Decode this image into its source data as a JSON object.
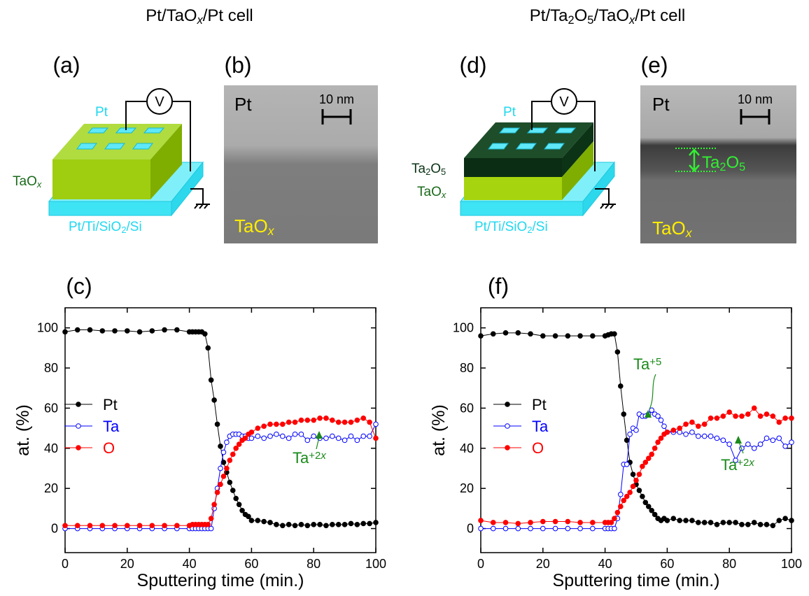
{
  "titles": [
    [
      "Pt/TaO",
      {
        "sub": "x",
        "italic": true
      },
      "/Pt cell"
    ],
    [
      "Pt/Ta",
      {
        "sub": "2"
      },
      "O",
      {
        "sub": "5"
      },
      "/TaO",
      {
        "sub": "x",
        "italic": true
      },
      "/Pt cell"
    ]
  ],
  "panel_labels": [
    "(a)",
    "(b)",
    "(c)",
    "(d)",
    "(e)",
    "(f)"
  ],
  "diagram_a": {
    "top": "Pt",
    "side": [
      "TaO",
      {
        "sub": "x",
        "italic": true
      }
    ],
    "substrate": [
      "Pt/Ti/SiO",
      {
        "sub": "2"
      },
      "/Si"
    ],
    "meter": "V"
  },
  "image_b": {
    "top": "Pt",
    "scale": "10 nm",
    "bottom": [
      "TaO",
      {
        "sub": "x",
        "italic": true
      }
    ]
  },
  "diagram_d": {
    "top": "Pt",
    "layer1": [
      "Ta",
      {
        "sub": "2"
      },
      "O",
      {
        "sub": "5"
      }
    ],
    "layer2": [
      "TaO",
      {
        "sub": "x",
        "italic": true
      }
    ],
    "substrate": [
      "Pt/Ti/SiO",
      {
        "sub": "2"
      },
      "/Si"
    ],
    "meter": "V"
  },
  "image_e": {
    "top": "Pt",
    "scale": "10 nm",
    "band": [
      "Ta",
      {
        "sub": "2"
      },
      "O",
      {
        "sub": "5"
      }
    ],
    "bottom": [
      "TaO",
      {
        "sub": "x",
        "italic": true
      }
    ]
  },
  "chart_data": [
    {
      "type": "line",
      "xlabel": "Sputtering time (min.)",
      "ylabel": "at. (%)",
      "xlim": [
        0,
        100
      ],
      "ylim": [
        -12,
        110
      ],
      "xticks": [
        0,
        20,
        40,
        60,
        80,
        100
      ],
      "yticks": [
        0,
        20,
        40,
        60,
        80,
        100
      ],
      "x": [
        0,
        4,
        8,
        12,
        16,
        20,
        24,
        28,
        32,
        36,
        40,
        41,
        42,
        43,
        44,
        45,
        46,
        47,
        48,
        49,
        50,
        51,
        52,
        53,
        54,
        55,
        56,
        57,
        58,
        59,
        60,
        62,
        64,
        66,
        68,
        70,
        72,
        74,
        76,
        78,
        80,
        82,
        84,
        86,
        88,
        90,
        92,
        94,
        96,
        98,
        100
      ],
      "series": [
        {
          "name": "Pt",
          "color": "#000000",
          "marker": "filled",
          "values": [
            98,
            99,
            99,
            98.5,
            98.5,
            98.5,
            98,
            98.5,
            99,
            99,
            98,
            98,
            98,
            98,
            98,
            97,
            90,
            74,
            64,
            52,
            41,
            33,
            28,
            23,
            19,
            15,
            12,
            9,
            7,
            6,
            4,
            4,
            3.5,
            3,
            2,
            1.5,
            2,
            1.5,
            2,
            1.5,
            2,
            2,
            1.5,
            2,
            2,
            2,
            2.5,
            2,
            2.5,
            2.5,
            3
          ]
        },
        {
          "name": "Ta",
          "color": "#0000ff",
          "marker": "open",
          "values": [
            0,
            0,
            0,
            0,
            0,
            0,
            0,
            0,
            0,
            0,
            0,
            0,
            0,
            0,
            0,
            0,
            0,
            0,
            10,
            20,
            30,
            38,
            43,
            46,
            47,
            47,
            47,
            46,
            46,
            45,
            45,
            46,
            45,
            46,
            47,
            46,
            45,
            47,
            47,
            44,
            46,
            45,
            45,
            46,
            45,
            44,
            46,
            44,
            46,
            46,
            52
          ]
        },
        {
          "name": "O",
          "color": "#ff0000",
          "marker": "filled",
          "values": [
            1.5,
            1.5,
            1.5,
            1.5,
            1.5,
            1.5,
            1.5,
            1.5,
            1.5,
            1.5,
            1.5,
            2,
            2,
            2,
            2,
            2,
            2,
            5,
            12,
            18,
            22,
            26,
            30,
            34,
            37,
            40,
            42,
            44,
            45,
            47,
            48,
            50,
            51,
            52,
            52,
            52,
            53,
            53,
            54,
            54,
            54,
            55,
            55,
            54,
            53,
            53,
            53,
            54,
            55,
            53,
            45
          ]
        }
      ],
      "annotations": [
        {
          "text": [
            "Ta",
            {
              "sup": "+2"
            },
            {
              "sup": "x",
              "italic": true
            }
          ],
          "color": "#1a8a1a"
        }
      ]
    },
    {
      "type": "line",
      "xlabel": "Sputtering time (min.)",
      "ylabel": "at. (%)",
      "xlim": [
        0,
        100
      ],
      "ylim": [
        -12,
        110
      ],
      "xticks": [
        0,
        20,
        40,
        60,
        80,
        100
      ],
      "yticks": [
        0,
        20,
        40,
        60,
        80,
        100
      ],
      "x": [
        0,
        4,
        8,
        12,
        16,
        20,
        24,
        28,
        32,
        36,
        40,
        41,
        42,
        43,
        44,
        45,
        46,
        47,
        48,
        49,
        50,
        51,
        52,
        53,
        54,
        55,
        56,
        57,
        58,
        59,
        60,
        62,
        64,
        66,
        68,
        70,
        72,
        74,
        76,
        78,
        80,
        82,
        84,
        86,
        88,
        90,
        92,
        94,
        96,
        98,
        100
      ],
      "series": [
        {
          "name": "Pt",
          "color": "#000000",
          "marker": "filled",
          "values": [
            96,
            97,
            97.5,
            97.5,
            97,
            96,
            96,
            96,
            96,
            96,
            96,
            96.5,
            97,
            97,
            88,
            71,
            57,
            44,
            33,
            27,
            22,
            19,
            16,
            13,
            11,
            9,
            7,
            5,
            4,
            5,
            4,
            5,
            4,
            4,
            4,
            3,
            3,
            3,
            2,
            3,
            3,
            3,
            2,
            2,
            3,
            2,
            2,
            1.5,
            4,
            5,
            4
          ]
        },
        {
          "name": "Ta",
          "color": "#0000ff",
          "marker": "open",
          "values": [
            0,
            0,
            0,
            0,
            0,
            0,
            0,
            0,
            0,
            0,
            0,
            0,
            0,
            0,
            5,
            17,
            32,
            32,
            47,
            50,
            49,
            57,
            56,
            56,
            57,
            59,
            57,
            56,
            54,
            51,
            48,
            48,
            48,
            47,
            48,
            46,
            46,
            46,
            45,
            44,
            42,
            34,
            40,
            42,
            40,
            42,
            45,
            44,
            45,
            41,
            43
          ]
        },
        {
          "name": "O",
          "color": "#ff0000",
          "marker": "filled",
          "values": [
            4,
            3,
            3,
            2.5,
            3,
            3.5,
            3.5,
            3.5,
            3,
            3,
            3,
            3,
            3,
            5,
            8,
            11,
            14,
            16,
            18,
            21,
            24,
            27,
            31,
            33,
            35,
            37,
            40,
            43,
            45,
            47,
            48,
            49,
            50,
            52,
            53,
            51,
            52,
            55,
            55,
            56,
            58,
            56,
            56,
            57,
            60,
            56,
            57,
            56,
            53,
            55,
            55
          ]
        }
      ],
      "annotations": [
        {
          "text": [
            "Ta",
            {
              "sup": "+5"
            }
          ],
          "color": "#1a8a1a"
        },
        {
          "text": [
            "Ta",
            {
              "sup": "+2"
            },
            {
              "sup": "x",
              "italic": true
            }
          ],
          "color": "#1a8a1a"
        }
      ]
    }
  ]
}
